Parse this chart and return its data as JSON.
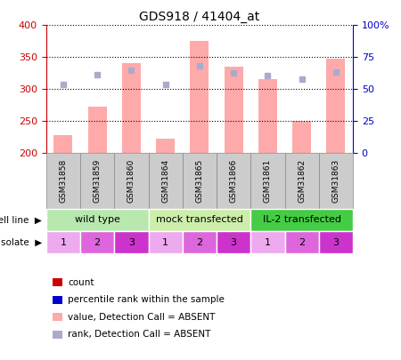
{
  "title": "GDS918 / 41404_at",
  "samples": [
    "GSM31858",
    "GSM31859",
    "GSM31860",
    "GSM31864",
    "GSM31865",
    "GSM31866",
    "GSM31861",
    "GSM31862",
    "GSM31863"
  ],
  "bar_values": [
    228,
    272,
    340,
    222,
    375,
    335,
    315,
    250,
    347
  ],
  "rank_dots": [
    307,
    323,
    330,
    307,
    336,
    326,
    321,
    316,
    327
  ],
  "ylim_left": [
    200,
    400
  ],
  "ylim_right": [
    0,
    100
  ],
  "yticks_left": [
    200,
    250,
    300,
    350,
    400
  ],
  "yticks_right": [
    0,
    25,
    50,
    75,
    100
  ],
  "cell_line_groups": [
    {
      "label": "wild type",
      "start": 0,
      "end": 3,
      "color": "#b8e8b0"
    },
    {
      "label": "mock transfected",
      "start": 3,
      "end": 6,
      "color": "#cceeaa"
    },
    {
      "label": "IL-2 transfected",
      "start": 6,
      "end": 9,
      "color": "#44cc44"
    }
  ],
  "isolates": [
    "1",
    "2",
    "3",
    "1",
    "2",
    "3",
    "1",
    "2",
    "3"
  ],
  "isolate_colors": [
    "#eeaaee",
    "#dd66dd",
    "#cc33cc",
    "#eeaaee",
    "#dd66dd",
    "#cc33cc",
    "#eeaaee",
    "#dd66dd",
    "#cc33cc"
  ],
  "bar_color": "#ffaaaa",
  "dot_color": "#aaaacc",
  "bar_bottom": 200,
  "legend_items": [
    {
      "color": "#cc0000",
      "label": "count"
    },
    {
      "color": "#0000cc",
      "label": "percentile rank within the sample"
    },
    {
      "color": "#ffaaaa",
      "label": "value, Detection Call = ABSENT"
    },
    {
      "color": "#aaaacc",
      "label": "rank, Detection Call = ABSENT"
    }
  ],
  "label_color_left": "#cc0000",
  "label_color_right": "#0000cc",
  "sample_box_color": "#cccccc",
  "sample_box_edge": "#888888"
}
